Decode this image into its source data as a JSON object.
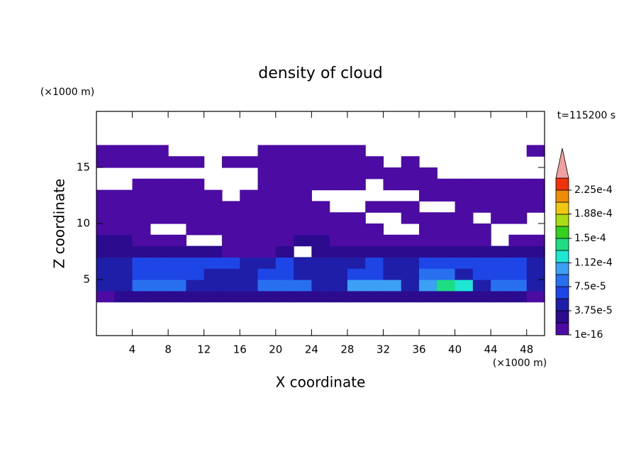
{
  "chart_data": {
    "type": "contour",
    "title": "density of cloud",
    "xlabel": "X coordinate",
    "ylabel": "Z coordinate",
    "x_unit": "(×1000 m)",
    "y_unit": "(×1000 m)",
    "annotation": "t=115200 s",
    "xlim": [
      0,
      50
    ],
    "ylim": [
      0,
      20
    ],
    "xticks": [
      4,
      8,
      12,
      16,
      20,
      24,
      28,
      32,
      36,
      40,
      44,
      48
    ],
    "yticks": [
      5,
      10,
      15
    ],
    "x": [
      1,
      3,
      5,
      7,
      9,
      11,
      13,
      15,
      17,
      19,
      21,
      23,
      25,
      27,
      29,
      31,
      33,
      35,
      37,
      39,
      41,
      43,
      45,
      47,
      49
    ],
    "y": [
      3.5,
      4.5,
      5.5,
      6.5,
      7.5,
      8.5,
      9.5,
      10.5,
      11.5,
      12.5,
      13.5,
      14.5,
      15.5,
      16.5
    ],
    "z": [
      [
        1e-06,
        2e-05,
        2e-05,
        2e-05,
        2e-05,
        2e-05,
        2e-05,
        2e-05,
        2e-05,
        2e-05,
        2e-05,
        2e-05,
        2e-05,
        2e-05,
        2e-05,
        2e-05,
        2e-05,
        2e-05,
        2e-05,
        2e-05,
        2e-05,
        2e-05,
        2e-05,
        2e-05,
        1e-06
      ],
      [
        4e-05,
        4e-05,
        8e-05,
        8e-05,
        8e-05,
        4e-05,
        4e-05,
        4e-05,
        4e-05,
        8e-05,
        8e-05,
        8e-05,
        4e-05,
        4e-05,
        0.0001,
        0.0001,
        0.0001,
        4e-05,
        0.0001,
        0.00014,
        0.00012,
        4e-05,
        8e-05,
        8e-05,
        4e-05
      ],
      [
        4e-05,
        4e-05,
        6e-05,
        6e-05,
        6e-05,
        6e-05,
        4e-05,
        4e-05,
        4e-05,
        6e-05,
        6e-05,
        4e-05,
        4e-05,
        4e-05,
        6e-05,
        6e-05,
        4e-05,
        4e-05,
        8e-05,
        8e-05,
        4e-05,
        6e-05,
        6e-05,
        6e-05,
        4e-05
      ],
      [
        4e-05,
        4e-05,
        6e-05,
        6e-05,
        6e-05,
        6e-05,
        6e-05,
        6e-05,
        4e-05,
        4e-05,
        6e-05,
        4e-05,
        4e-05,
        4e-05,
        4e-05,
        6e-05,
        4e-05,
        4e-05,
        6e-05,
        6e-05,
        6e-05,
        6e-05,
        6e-05,
        6e-05,
        4e-05
      ],
      [
        2e-05,
        2e-05,
        2e-05,
        2e-05,
        2e-05,
        2e-05,
        2e-05,
        1e-06,
        1e-06,
        1e-06,
        2e-05,
        0,
        2e-05,
        2e-05,
        2e-05,
        2e-05,
        2e-05,
        2e-05,
        2e-05,
        2e-05,
        2e-05,
        2e-05,
        2e-05,
        2e-05,
        2e-05
      ],
      [
        2e-05,
        2e-05,
        1e-06,
        1e-06,
        1e-06,
        0,
        0,
        1e-06,
        1e-06,
        1e-06,
        1e-06,
        2e-05,
        2e-05,
        1e-06,
        1e-06,
        1e-06,
        1e-06,
        1e-06,
        1e-06,
        1e-06,
        1e-06,
        1e-06,
        0,
        1e-06,
        1e-06
      ],
      [
        1e-06,
        1e-06,
        1e-06,
        0,
        0,
        1e-06,
        1e-06,
        1e-06,
        1e-06,
        1e-06,
        1e-06,
        1e-06,
        1e-06,
        1e-06,
        1e-06,
        1e-06,
        0,
        0,
        1e-06,
        1e-06,
        1e-06,
        1e-06,
        0,
        0,
        0
      ],
      [
        1e-06,
        1e-06,
        1e-06,
        1e-06,
        1e-06,
        1e-06,
        1e-06,
        1e-06,
        1e-06,
        1e-06,
        1e-06,
        1e-06,
        1e-06,
        1e-06,
        1e-06,
        0,
        0,
        1e-06,
        1e-06,
        1e-06,
        1e-06,
        0,
        1e-06,
        1e-06,
        0
      ],
      [
        1e-06,
        1e-06,
        1e-06,
        1e-06,
        1e-06,
        1e-06,
        1e-06,
        1e-06,
        1e-06,
        1e-06,
        1e-06,
        1e-06,
        1e-06,
        0,
        0,
        1e-06,
        1e-06,
        1e-06,
        0,
        0,
        1e-06,
        1e-06,
        1e-06,
        1e-06,
        1e-06
      ],
      [
        1e-06,
        1e-06,
        1e-06,
        1e-06,
        1e-06,
        1e-06,
        1e-06,
        0,
        1e-06,
        1e-06,
        1e-06,
        1e-06,
        0,
        0,
        0,
        0,
        0,
        0,
        1e-06,
        1e-06,
        1e-06,
        1e-06,
        1e-06,
        1e-06,
        1e-06
      ],
      [
        0,
        0,
        1e-06,
        1e-06,
        1e-06,
        1e-06,
        0,
        0,
        0,
        1e-06,
        1e-06,
        1e-06,
        1e-06,
        1e-06,
        1e-06,
        0,
        1e-06,
        1e-06,
        1e-06,
        1e-06,
        1e-06,
        1e-06,
        1e-06,
        1e-06,
        1e-06
      ],
      [
        0,
        0,
        0,
        0,
        0,
        0,
        0,
        0,
        0,
        1e-06,
        1e-06,
        1e-06,
        1e-06,
        1e-06,
        1e-06,
        1e-06,
        1e-06,
        1e-06,
        1e-06,
        0,
        0,
        0,
        0,
        0,
        0
      ],
      [
        1e-06,
        1e-06,
        1e-06,
        1e-06,
        1e-06,
        1e-06,
        0,
        1e-06,
        1e-06,
        1e-06,
        1e-06,
        1e-06,
        1e-06,
        1e-06,
        1e-06,
        1e-06,
        0,
        1e-06,
        0,
        0,
        0,
        0,
        0,
        0,
        0
      ],
      [
        1e-06,
        1e-06,
        1e-06,
        1e-06,
        0,
        0,
        0,
        0,
        0,
        1e-06,
        1e-06,
        1e-06,
        1e-06,
        1e-06,
        1e-06,
        0,
        0,
        0,
        0,
        0,
        0,
        0,
        0,
        0,
        1e-06
      ]
    ],
    "colorbar": {
      "levels": [
        1e-16,
        1.875e-05,
        3.75e-05,
        5.625e-05,
        7.5e-05,
        9.375e-05,
        0.0001125,
        0.00013125,
        0.00015,
        0.00016875,
        0.0001875,
        0.00020625,
        0.000225,
        0.00024375
      ],
      "colors": [
        "#4c0ca4",
        "#2d0b8f",
        "#1e1ea8",
        "#1e46e6",
        "#2870f0",
        "#3ca0f5",
        "#1ee6d2",
        "#1edc82",
        "#32d21e",
        "#aadc14",
        "#f0c814",
        "#f08c0a",
        "#f0320a"
      ],
      "extend_color": "#f0a0a0",
      "ticks": [
        1e-16,
        {
          "value": 3.75e-05,
          "label": "3.75e-5"
        },
        {
          "value": 7.5e-05,
          "label": "7.5e-5"
        },
        {
          "value": 0.000112,
          "label": "1.12e-4"
        },
        {
          "value": 0.00015,
          "label": "1.5e-4"
        },
        {
          "value": 0.000188,
          "label": "1.88e-4"
        },
        {
          "value": 0.000225,
          "label": "2.25e-4"
        }
      ]
    }
  }
}
